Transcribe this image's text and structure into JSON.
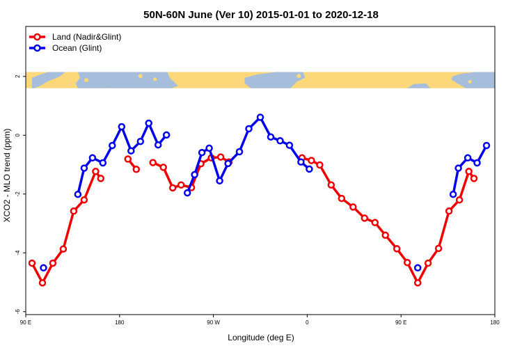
{
  "chart_data": {
    "type": "line",
    "title": "50N-60N June (Ver 10)   2015-01-01 to 2020-12-18",
    "xlabel": "Longitude (deg E)",
    "ylabel": "XCO2 - MLO trend (ppm)",
    "xlim": [
      90,
      540
    ],
    "ylim": [
      -6.1,
      3.7
    ],
    "x_ticks": [
      {
        "value": 90,
        "label": "90 E"
      },
      {
        "value": 180,
        "label": "180"
      },
      {
        "value": 270,
        "label": "90 W"
      },
      {
        "value": 360,
        "label": "0"
      },
      {
        "value": 450,
        "label": "90 E"
      },
      {
        "value": 540,
        "label": "180"
      }
    ],
    "y_ticks": [
      {
        "value": -6,
        "label": "-6"
      },
      {
        "value": -4,
        "label": "-4"
      },
      {
        "value": -2,
        "label": "-2"
      },
      {
        "value": 0,
        "label": "0"
      },
      {
        "value": 2,
        "label": "2"
      }
    ],
    "legend_position": "top-left",
    "map_strip": {
      "y_range": [
        1.6,
        2.15
      ],
      "ocean_color": "#a6bddb",
      "land_color": "#fdd87a"
    },
    "series": [
      {
        "name": "Land (Nadir&Glint)",
        "color": "#ee0000",
        "segments": [
          [
            [
              96,
              -4.35
            ],
            [
              106,
              -5.02
            ],
            [
              116,
              -4.35
            ],
            [
              126,
              -3.87
            ],
            [
              136,
              -2.58
            ],
            [
              146,
              -2.2
            ],
            [
              157,
              -1.23
            ],
            [
              162,
              -1.47
            ]
          ],
          [
            [
              188,
              -0.81
            ],
            [
              196,
              -1.16
            ]
          ],
          [
            [
              212,
              -0.93
            ],
            [
              222,
              -1.09
            ],
            [
              231,
              -1.79
            ],
            [
              239,
              -1.69
            ],
            [
              249,
              -1.78
            ],
            [
              258,
              -0.97
            ],
            [
              268,
              -0.77
            ],
            [
              277,
              -0.74
            ],
            [
              285,
              -0.91
            ]
          ],
          [
            [
              355,
              -0.77
            ],
            [
              364,
              -0.86
            ],
            [
              372,
              -1.01
            ],
            [
              383,
              -1.69
            ],
            [
              393,
              -2.15
            ],
            [
              404,
              -2.44
            ],
            [
              415,
              -2.82
            ],
            [
              425,
              -2.97
            ],
            [
              435,
              -3.4
            ],
            [
              446,
              -3.86
            ],
            [
              456,
              -4.33
            ],
            [
              466,
              -5.02
            ],
            [
              476,
              -4.35
            ],
            [
              486,
              -3.85
            ],
            [
              496,
              -2.58
            ],
            [
              506,
              -2.2
            ],
            [
              515,
              -1.23
            ],
            [
              520,
              -1.47
            ]
          ]
        ]
      },
      {
        "name": "Ocean (Glint)",
        "color": "#0000ee",
        "segments": [
          [
            [
              107,
              -4.51
            ]
          ],
          [
            [
              140,
              -2.01
            ],
            [
              146,
              -1.12
            ],
            [
              154,
              -0.77
            ],
            [
              164,
              -0.94
            ],
            [
              173,
              -0.35
            ],
            [
              182,
              0.29
            ],
            [
              191,
              -0.53
            ],
            [
              200,
              -0.21
            ],
            [
              208,
              0.41
            ],
            [
              217,
              -0.33
            ],
            [
              225,
              0.01
            ]
          ],
          [
            [
              245,
              -1.96
            ],
            [
              252,
              -1.34
            ],
            [
              259,
              -0.59
            ],
            [
              266,
              -0.44
            ],
            [
              276,
              -1.55
            ],
            [
              284,
              -0.96
            ],
            [
              295,
              -0.56
            ],
            [
              304,
              0.22
            ],
            [
              315,
              0.61
            ],
            [
              325,
              -0.06
            ],
            [
              334,
              -0.19
            ],
            [
              343,
              -0.34
            ],
            [
              354,
              -0.91
            ],
            [
              362,
              -1.15
            ]
          ],
          [
            [
              466,
              -4.51
            ]
          ],
          [
            [
              500,
              -2.01
            ],
            [
              505,
              -1.12
            ],
            [
              514,
              -0.77
            ],
            [
              523,
              -0.94
            ],
            [
              532,
              -0.35
            ]
          ]
        ]
      }
    ]
  }
}
